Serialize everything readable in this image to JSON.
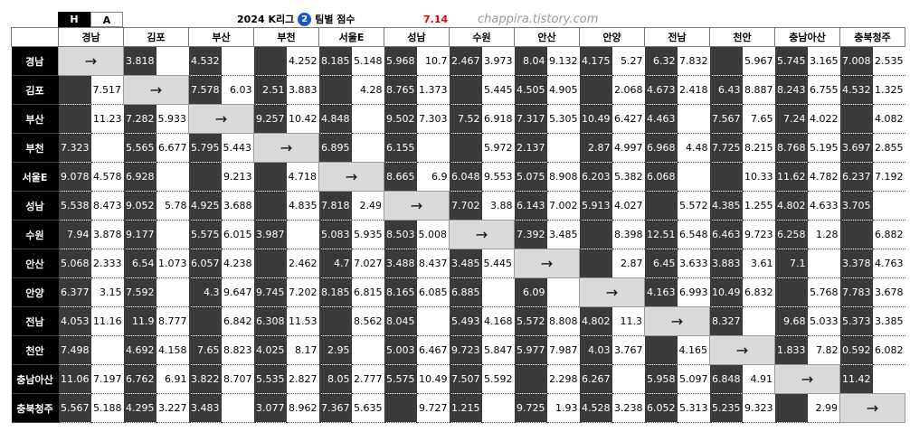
{
  "header": {
    "h_label": "H",
    "a_label": "A",
    "title": "2024 K리그",
    "badge": "2",
    "title2": "팀별 점수",
    "date": "7.14",
    "watermark": "chappira.tistory.com"
  },
  "columns": [
    "경남",
    "김포",
    "부산",
    "부천",
    "서울E",
    "성남",
    "수원",
    "안산",
    "안양",
    "전남",
    "천안",
    "충남아산",
    "충북청주"
  ],
  "rows": [
    {
      "team": "경남",
      "cells": [
        "→",
        [
          3.818,
          null
        ],
        [
          4.532,
          null
        ],
        [
          null,
          4.252
        ],
        [
          8.185,
          5.148
        ],
        [
          5.968,
          10.7
        ],
        [
          2.467,
          3.973
        ],
        [
          8.04,
          9.132
        ],
        [
          4.175,
          5.27
        ],
        [
          6.32,
          7.832
        ],
        [
          null,
          5.967
        ],
        [
          5.745,
          3.165
        ],
        [
          7.008,
          2.535
        ]
      ]
    },
    {
      "team": "김포",
      "cells": [
        [
          null,
          7.517
        ],
        "→",
        [
          7.578,
          6.03
        ],
        [
          2.51,
          3.883
        ],
        [
          null,
          4.28
        ],
        [
          8.765,
          1.373
        ],
        [
          null,
          5.445
        ],
        [
          4.505,
          4.905
        ],
        [
          null,
          2.068
        ],
        [
          4.673,
          2.418
        ],
        [
          6.43,
          8.887
        ],
        [
          8.243,
          6.755
        ],
        [
          4.532,
          1.325
        ]
      ]
    },
    {
      "team": "부산",
      "cells": [
        [
          null,
          11.23
        ],
        [
          7.282,
          5.933
        ],
        "→",
        [
          9.257,
          10.42
        ],
        [
          4.848,
          null
        ],
        [
          9.502,
          7.303
        ],
        [
          7.52,
          6.918
        ],
        [
          7.317,
          5.305
        ],
        [
          10.49,
          6.427
        ],
        [
          4.463,
          null
        ],
        [
          7.567,
          7.65
        ],
        [
          7.24,
          4.022
        ],
        [
          null,
          4.082
        ]
      ]
    },
    {
      "team": "부천",
      "cells": [
        [
          7.323,
          null
        ],
        [
          5.565,
          6.677
        ],
        [
          5.795,
          5.443
        ],
        "→",
        [
          6.895,
          null
        ],
        [
          6.155,
          null
        ],
        [
          null,
          5.972
        ],
        [
          2.137,
          null
        ],
        [
          2.87,
          4.997
        ],
        [
          6.968,
          4.48
        ],
        [
          7.725,
          8.215
        ],
        [
          8.768,
          5.195
        ],
        [
          3.697,
          2.855
        ]
      ]
    },
    {
      "team": "서울E",
      "cells": [
        [
          9.078,
          4.578
        ],
        [
          6.928,
          null
        ],
        [
          null,
          9.213
        ],
        [
          null,
          4.718
        ],
        "→",
        [
          8.665,
          6.9
        ],
        [
          6.048,
          9.553
        ],
        [
          5.075,
          8.908
        ],
        [
          6.203,
          5.382
        ],
        [
          6.068,
          null
        ],
        [
          null,
          10.33
        ],
        [
          11.62,
          4.782
        ],
        [
          6.237,
          7.192
        ]
      ]
    },
    {
      "team": "성남",
      "cells": [
        [
          5.538,
          8.473
        ],
        [
          9.052,
          5.78
        ],
        [
          4.925,
          3.688
        ],
        [
          null,
          4.835
        ],
        [
          7.818,
          2.49
        ],
        "→",
        [
          7.702,
          3.88
        ],
        [
          6.143,
          7.002
        ],
        [
          5.913,
          4.027
        ],
        [
          null,
          5.572
        ],
        [
          4.385,
          1.255
        ],
        [
          4.802,
          4.633
        ],
        [
          3.705,
          null
        ]
      ]
    },
    {
      "team": "수원",
      "cells": [
        [
          7.94,
          3.878
        ],
        [
          9.177,
          null
        ],
        [
          5.575,
          6.015
        ],
        [
          3.987,
          null
        ],
        [
          5.083,
          5.935
        ],
        [
          8.503,
          5.008
        ],
        "→",
        [
          7.392,
          3.485
        ],
        [
          null,
          8.398
        ],
        [
          12.51,
          6.548
        ],
        [
          6.463,
          9.723
        ],
        [
          6.258,
          1.28
        ],
        [
          null,
          6.882
        ]
      ]
    },
    {
      "team": "안산",
      "cells": [
        [
          5.068,
          2.333
        ],
        [
          6.54,
          1.073
        ],
        [
          6.057,
          4.238
        ],
        [
          null,
          2.462
        ],
        [
          4.7,
          7.027
        ],
        [
          3.488,
          8.437
        ],
        [
          3.485,
          5.445
        ],
        "→",
        [
          null,
          2.87
        ],
        [
          6.45,
          3.633
        ],
        [
          3.883,
          3.61
        ],
        [
          7.1,
          null
        ],
        [
          3.378,
          4.763
        ]
      ]
    },
    {
      "team": "안양",
      "cells": [
        [
          6.377,
          3.15
        ],
        [
          7.592,
          null
        ],
        [
          4.3,
          9.647
        ],
        [
          9.745,
          7.202
        ],
        [
          8.185,
          6.815
        ],
        [
          8.165,
          6.085
        ],
        [
          6.885,
          null
        ],
        [
          6.09,
          null
        ],
        "→",
        [
          4.163,
          6.993
        ],
        [
          10.49,
          6.832
        ],
        [
          null,
          5.768
        ],
        [
          7.783,
          3.678
        ]
      ]
    },
    {
      "team": "전남",
      "cells": [
        [
          4.053,
          11.16
        ],
        [
          11.9,
          8.777
        ],
        [
          null,
          6.842
        ],
        [
          6.308,
          11.53
        ],
        [
          null,
          8.562
        ],
        [
          8.045,
          null
        ],
        [
          5.493,
          4.168
        ],
        [
          5.572,
          8.808
        ],
        [
          4.802,
          11.3
        ],
        "→",
        [
          8.327,
          null
        ],
        [
          9.68,
          5.033
        ],
        [
          5.373,
          3.385
        ]
      ]
    },
    {
      "team": "천안",
      "cells": [
        [
          7.498,
          null
        ],
        [
          4.692,
          4.158
        ],
        [
          7.65,
          8.823
        ],
        [
          4.025,
          8.17
        ],
        [
          2.95,
          null
        ],
        [
          5.003,
          6.467
        ],
        [
          9.723,
          5.847
        ],
        [
          5.977,
          7.987
        ],
        [
          4.03,
          3.767
        ],
        [
          null,
          4.165
        ],
        "→",
        [
          1.833,
          7.82
        ],
        [
          0.592,
          6.082
        ]
      ]
    },
    {
      "team": "충남아산",
      "cells": [
        [
          11.06,
          7.197
        ],
        [
          6.762,
          6.91
        ],
        [
          3.822,
          8.707
        ],
        [
          5.535,
          2.827
        ],
        [
          8.05,
          2.777
        ],
        [
          5.575,
          10.49
        ],
        [
          7.507,
          5.592
        ],
        [
          null,
          2.298
        ],
        [
          6.267,
          null
        ],
        [
          5.958,
          5.097
        ],
        [
          6.848,
          4.91
        ],
        "→",
        [
          11.42,
          null
        ]
      ]
    },
    {
      "team": "충북청주",
      "cells": [
        [
          5.567,
          5.188
        ],
        [
          4.295,
          3.227
        ],
        [
          3.483,
          null
        ],
        [
          3.077,
          8.962
        ],
        [
          7.367,
          5.635
        ],
        [
          null,
          9.727
        ],
        [
          1.215,
          null
        ],
        [
          9.725,
          1.93
        ],
        [
          4.528,
          3.238
        ],
        [
          6.052,
          5.313
        ],
        [
          5.235,
          9.323
        ],
        [
          null,
          2.99
        ],
        "→"
      ]
    }
  ]
}
